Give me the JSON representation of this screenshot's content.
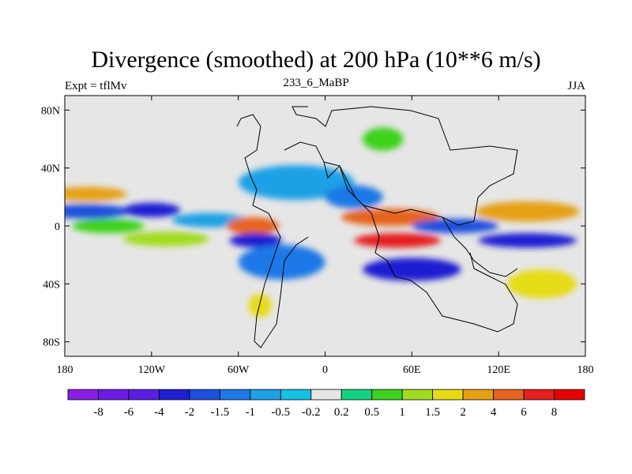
{
  "chart_data": {
    "type": "heatmap",
    "title": "Divergence (smoothed) at 200 hPa (10**6 m/s)",
    "left_label": "Expt = tflMv",
    "center_label": "233_6_MaBP",
    "right_label": "JJA",
    "xlim": [
      -180,
      180
    ],
    "ylim": [
      -90,
      90
    ],
    "x_ticks": [
      {
        "value": -180,
        "label": "180"
      },
      {
        "value": -120,
        "label": "120W"
      },
      {
        "value": -60,
        "label": "60W"
      },
      {
        "value": 0,
        "label": "0"
      },
      {
        "value": 60,
        "label": "60E"
      },
      {
        "value": 120,
        "label": "120E"
      },
      {
        "value": 180,
        "label": "180"
      }
    ],
    "y_ticks": [
      {
        "value": 80,
        "label": "80N"
      },
      {
        "value": 40,
        "label": "40N"
      },
      {
        "value": 0,
        "label": "0"
      },
      {
        "value": -40,
        "label": "40S"
      },
      {
        "value": -80,
        "label": "80S"
      }
    ],
    "colorbar": {
      "levels": [
        "-8",
        "-6",
        "-4",
        "-2",
        "-1.5",
        "-1",
        "-0.5",
        "-0.2",
        "0.2",
        "0.5",
        "1",
        "1.5",
        "2",
        "4",
        "6",
        "8"
      ],
      "colors": [
        "#8a1ee6",
        "#6e1ae6",
        "#5a1ee6",
        "#1e1ed2",
        "#1e50dc",
        "#1e78e6",
        "#1ea0e6",
        "#14c0e6",
        "#e6e6e6",
        "#14d282",
        "#3cd21e",
        "#a0dc1e",
        "#e6dc14",
        "#e6a014",
        "#e6641e",
        "#e61e1e",
        "#e60000"
      ]
    },
    "field_blobs": [
      {
        "lon": -165,
        "lat": 22,
        "rx": 28,
        "ry": 5,
        "level": 13
      },
      {
        "lon": -165,
        "lat": 10,
        "rx": 30,
        "ry": 5,
        "level": 4
      },
      {
        "lon": -150,
        "lat": 0,
        "rx": 25,
        "ry": 5,
        "level": 10
      },
      {
        "lon": -120,
        "lat": 11,
        "rx": 20,
        "ry": 5,
        "level": 3
      },
      {
        "lon": -110,
        "lat": -9,
        "rx": 30,
        "ry": 5,
        "level": 11
      },
      {
        "lon": -80,
        "lat": 4,
        "rx": 26,
        "ry": 5,
        "level": 6
      },
      {
        "lon": -50,
        "lat": 0,
        "rx": 18,
        "ry": 6,
        "level": 14
      },
      {
        "lon": -48,
        "lat": -10,
        "rx": 18,
        "ry": 5,
        "level": 3
      },
      {
        "lon": -30,
        "lat": -25,
        "rx": 30,
        "ry": 12,
        "level": 5
      },
      {
        "lon": -20,
        "lat": 30,
        "rx": 40,
        "ry": 12,
        "level": 6
      },
      {
        "lon": 20,
        "lat": 20,
        "rx": 20,
        "ry": 8,
        "level": 5
      },
      {
        "lon": 45,
        "lat": 6,
        "rx": 34,
        "ry": 6,
        "level": 14
      },
      {
        "lon": 50,
        "lat": -10,
        "rx": 30,
        "ry": 5,
        "level": 15
      },
      {
        "lon": 60,
        "lat": -30,
        "rx": 34,
        "ry": 8,
        "level": 3
      },
      {
        "lon": 90,
        "lat": 0,
        "rx": 30,
        "ry": 5,
        "level": 4
      },
      {
        "lon": 140,
        "lat": 10,
        "rx": 36,
        "ry": 7,
        "level": 13
      },
      {
        "lon": 140,
        "lat": -10,
        "rx": 34,
        "ry": 5,
        "level": 3
      },
      {
        "lon": 150,
        "lat": -40,
        "rx": 24,
        "ry": 10,
        "level": 12
      },
      {
        "lon": -45,
        "lat": -55,
        "rx": 8,
        "ry": 8,
        "level": 12
      },
      {
        "lon": 40,
        "lat": 60,
        "rx": 14,
        "ry": 8,
        "level": 10
      }
    ]
  }
}
